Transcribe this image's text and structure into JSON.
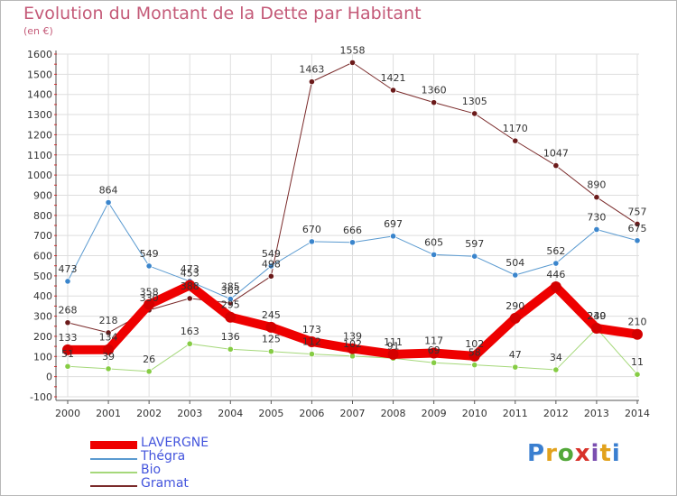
{
  "title": "Evolution du Montant de la Dette par Habitant",
  "subtitle": "(en €)",
  "logo": {
    "text": "Proxiti",
    "colors": [
      "#3a7fd0",
      "#e2a21d",
      "#53a83a",
      "#d8322a",
      "#7b4fb0",
      "#e2a21d",
      "#3a7fd0"
    ]
  },
  "chart_data": {
    "type": "line",
    "x": [
      "2000",
      "2001",
      "2002",
      "2003",
      "2004",
      "2005",
      "2006",
      "2007",
      "2008",
      "2009",
      "2010",
      "2011",
      "2012",
      "2013",
      "2014"
    ],
    "ylim": [
      -100,
      1600
    ],
    "yticks": [
      "-100",
      "0",
      "100",
      "200",
      "300",
      "400",
      "500",
      "600",
      "700",
      "800",
      "900",
      "1000",
      "1100",
      "1200",
      "1300",
      "1400",
      "1500",
      "1600"
    ],
    "ytick_values": [
      -100,
      0,
      100,
      200,
      300,
      400,
      500,
      600,
      700,
      800,
      900,
      1000,
      1100,
      1200,
      1300,
      1400,
      1500,
      1600
    ],
    "grid": true,
    "legend": "bottom-left",
    "series": [
      {
        "name": "Gramat",
        "color": "#7a2a2a",
        "marker": "#6b1a1a",
        "width": 1,
        "values": [
          268,
          218,
          330,
          388,
          365,
          498,
          1463,
          1558,
          1421,
          1360,
          1305,
          1170,
          1047,
          890,
          757
        ],
        "labels": [
          "268",
          "218",
          "330",
          "388",
          "365",
          "498",
          "1463",
          "1558",
          "1421",
          "1360",
          "1305",
          "1170",
          "1047",
          "890",
          "757"
        ]
      },
      {
        "name": "Thégra",
        "color": "#5a9ad0",
        "marker": "#3a85cc",
        "width": 1,
        "values": [
          473,
          864,
          549,
          473,
          385,
          549,
          670,
          666,
          697,
          605,
          597,
          504,
          562,
          730,
          675
        ],
        "labels": [
          "473",
          "864",
          "549",
          "473",
          "385",
          "549",
          "670",
          "666",
          "697",
          "605",
          "597",
          "504",
          "562",
          "730",
          "675"
        ]
      },
      {
        "name": "Bio",
        "color": "#a5d87a",
        "marker": "#86cc44",
        "width": 1,
        "values": [
          51,
          39,
          26,
          163,
          136,
          125,
          112,
          102,
          91,
          69,
          58,
          47,
          34,
          239,
          11
        ],
        "labels": [
          "51",
          "39",
          "26",
          "163",
          "136",
          "125",
          "112",
          "102",
          "91",
          "69",
          "58",
          "47",
          "34",
          "239",
          "11"
        ]
      },
      {
        "name": "LAVERGNE",
        "color": "#ee0000",
        "marker": "#d40000",
        "width": 10,
        "values": [
          133,
          134,
          358,
          453,
          295,
          245,
          173,
          139,
          111,
          117,
          102,
          290,
          446,
          240,
          210
        ],
        "labels": [
          "133",
          "134",
          "358",
          "453",
          "295",
          "245",
          "173",
          "139",
          "111",
          "117",
          "102",
          "290",
          "446",
          "240",
          "210"
        ]
      }
    ],
    "legend_order": [
      "LAVERGNE",
      "Thégra",
      "Bio",
      "Gramat"
    ]
  }
}
